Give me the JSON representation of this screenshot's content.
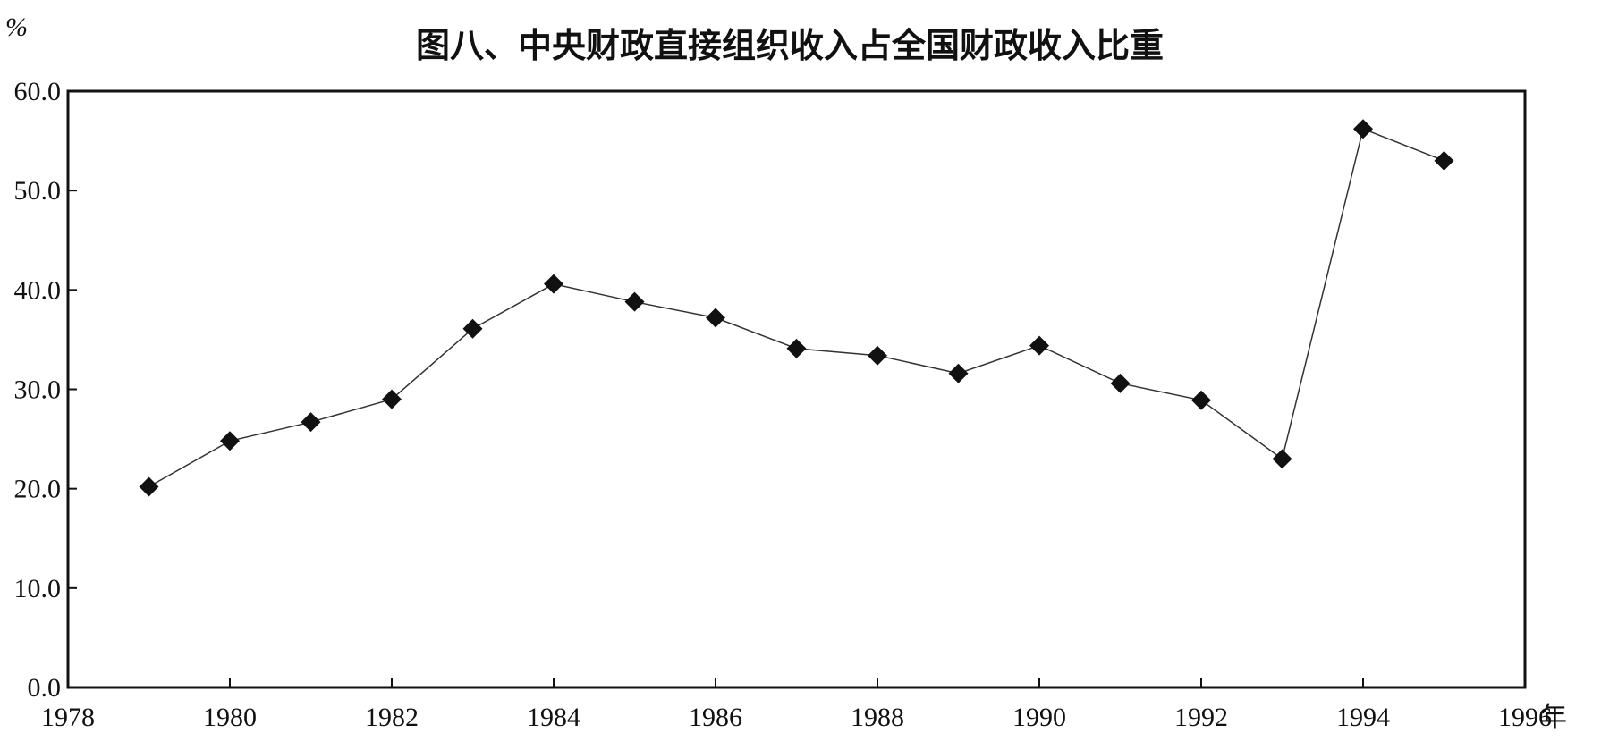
{
  "chart_data": {
    "type": "line",
    "title": "图八、中央财政直接组织收入占全国财政收入比重",
    "ylabel": "%",
    "xlabel": "年",
    "ylim": [
      0,
      60
    ],
    "xlim": [
      1978,
      1996
    ],
    "y_ticks": [
      "0.0",
      "10.0",
      "20.0",
      "30.0",
      "40.0",
      "50.0",
      "60.0"
    ],
    "x_ticks": [
      "1978",
      "1980",
      "1982",
      "1984",
      "1986",
      "1988",
      "1990",
      "1992",
      "1994",
      "1996"
    ],
    "grid": false,
    "legend": "none",
    "marker": "diamond",
    "line_color": "#333333",
    "marker_color": "#111111",
    "series": [
      {
        "x": [
          1979,
          1980,
          1981,
          1982,
          1983,
          1984,
          1985,
          1986,
          1987,
          1988,
          1989,
          1990,
          1991,
          1992,
          1993,
          1994,
          1995
        ],
        "values": [
          20.2,
          24.8,
          26.7,
          29.0,
          36.1,
          40.6,
          38.8,
          37.2,
          34.1,
          33.4,
          31.6,
          34.4,
          30.6,
          28.9,
          23.0,
          56.2,
          53.0
        ]
      }
    ]
  }
}
